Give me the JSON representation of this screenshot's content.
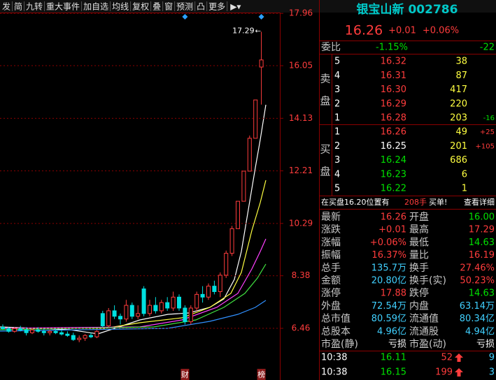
{
  "toolbar": [
    "发",
    "简",
    "九转",
    "重大事件",
    "加自选",
    "均线",
    "复权",
    "叠",
    "窗",
    "预测",
    "凸",
    "更多"
  ],
  "header": {
    "title": "银宝山新 002786",
    "price": "16.26",
    "change": "+0.01",
    "change_pct": "+0.06%"
  },
  "order_ratio": {
    "label": "委比",
    "ratio": "-1.15%",
    "diff": "-22"
  },
  "sell": {
    "label": [
      "卖",
      "盘"
    ],
    "rows": [
      [
        "5",
        "16.32",
        "38"
      ],
      [
        "4",
        "16.31",
        "87"
      ],
      [
        "3",
        "16.30",
        "417"
      ],
      [
        "2",
        "16.29",
        "220"
      ],
      [
        "1",
        "16.28",
        "203",
        "-16"
      ]
    ]
  },
  "buy": {
    "label": [
      "买",
      "盘"
    ],
    "rows": [
      [
        "1",
        "16.26",
        "49",
        "+25"
      ],
      [
        "2",
        "16.25",
        "201",
        "+105"
      ],
      [
        "3",
        "16.24",
        "686"
      ],
      [
        "4",
        "16.23",
        "6"
      ],
      [
        "5",
        "16.22",
        "1"
      ]
    ]
  },
  "notice": [
    "在买盘16.20位置有",
    "208手",
    "买单!",
    "查看详细"
  ],
  "stats": [
    [
      "最新",
      "16.26",
      "开盘",
      "16.00"
    ],
    [
      "涨跌",
      "+0.01",
      "最高",
      "17.29"
    ],
    [
      "涨幅",
      "+0.06%",
      "最低",
      "14.63"
    ],
    [
      "振幅",
      "16.37%",
      "量比",
      "16.19"
    ],
    [
      "总手",
      "135.7万",
      "换手",
      "27.46%"
    ],
    [
      "金额",
      "20.80亿",
      "换手(实)",
      "50.23%"
    ],
    [
      "涨停",
      "17.88",
      "跌停",
      "14.63"
    ],
    [
      "外盘",
      "72.54万",
      "内盘",
      "63.14万"
    ],
    [
      "总市值",
      "80.59亿",
      "流通值",
      "80.34亿"
    ],
    [
      "总股本",
      "4.96亿",
      "流通股",
      "4.94亿"
    ],
    [
      "市盈(静)",
      "亏损",
      "市盈(动)",
      "亏损"
    ]
  ],
  "trades": [
    [
      "10:38",
      "16.11",
      "52",
      "9"
    ],
    [
      "10:38",
      "16.15",
      "199",
      "3"
    ]
  ],
  "chart": {
    "type": "candlestick",
    "ylim": [
      4.93,
      17.99
    ],
    "yticks": [
      17.96,
      16.05,
      14.13,
      12.21,
      10.29,
      8.38,
      6.46
    ],
    "high_label": "17.29",
    "events": [
      {
        "index": 31,
        "label": "财"
      },
      {
        "index": 44,
        "label": "榜"
      }
    ],
    "candles": [
      [
        6.5,
        6.6,
        6.4,
        6.45
      ],
      [
        6.45,
        6.5,
        6.3,
        6.35
      ],
      [
        6.35,
        6.5,
        6.3,
        6.45
      ],
      [
        6.45,
        6.55,
        6.35,
        6.4
      ],
      [
        6.4,
        6.5,
        6.2,
        6.3
      ],
      [
        6.3,
        6.45,
        6.25,
        6.4
      ],
      [
        6.4,
        6.5,
        6.3,
        6.35
      ],
      [
        6.35,
        6.45,
        6.2,
        6.3
      ],
      [
        6.3,
        6.4,
        6.2,
        6.35
      ],
      [
        6.35,
        6.45,
        6.25,
        6.3
      ],
      [
        6.3,
        6.4,
        6.2,
        6.25
      ],
      [
        6.25,
        6.35,
        6.15,
        6.2
      ],
      [
        6.2,
        6.3,
        6.0,
        6.05
      ],
      [
        6.05,
        6.2,
        5.95,
        6.1
      ],
      [
        6.1,
        6.25,
        6.0,
        6.2
      ],
      [
        6.2,
        6.3,
        6.1,
        6.15
      ],
      [
        6.15,
        6.4,
        6.1,
        6.35
      ],
      [
        7.0,
        7.1,
        6.5,
        6.55
      ],
      [
        6.55,
        7.2,
        6.5,
        7.1
      ],
      [
        7.1,
        7.3,
        6.8,
        6.9
      ],
      [
        6.9,
        7.0,
        6.6,
        6.8
      ],
      [
        6.8,
        7.5,
        6.7,
        7.3
      ],
      [
        7.3,
        7.4,
        6.8,
        6.9
      ],
      [
        6.9,
        7.3,
        6.8,
        7.0
      ],
      [
        7.9,
        8.0,
        6.9,
        7.0
      ],
      [
        7.0,
        7.5,
        6.9,
        7.3
      ],
      [
        7.3,
        7.6,
        7.0,
        7.1
      ],
      [
        7.1,
        7.5,
        7.0,
        7.4
      ],
      [
        7.4,
        7.6,
        7.1,
        7.2
      ],
      [
        7.2,
        7.8,
        7.1,
        7.6
      ],
      [
        7.6,
        7.7,
        7.1,
        7.2
      ],
      [
        7.2,
        7.3,
        6.6,
        6.7
      ],
      [
        6.7,
        7.3,
        6.6,
        7.2
      ],
      [
        7.2,
        7.8,
        7.1,
        7.7
      ],
      [
        7.7,
        8.0,
        7.4,
        7.6
      ],
      [
        7.6,
        8.1,
        7.5,
        8.0
      ],
      [
        8.0,
        8.2,
        7.7,
        7.8
      ],
      [
        7.8,
        8.5,
        7.6,
        8.4
      ],
      [
        8.4,
        9.3,
        8.3,
        9.2
      ],
      [
        9.2,
        10.2,
        9.1,
        10.1
      ],
      [
        10.1,
        11.1,
        10.1,
        11.1
      ],
      [
        11.1,
        12.2,
        11.1,
        12.2
      ],
      [
        12.2,
        13.5,
        12.2,
        13.4
      ],
      [
        13.4,
        14.8,
        13.4,
        14.8
      ],
      [
        16.0,
        17.29,
        14.63,
        16.26
      ]
    ]
  }
}
